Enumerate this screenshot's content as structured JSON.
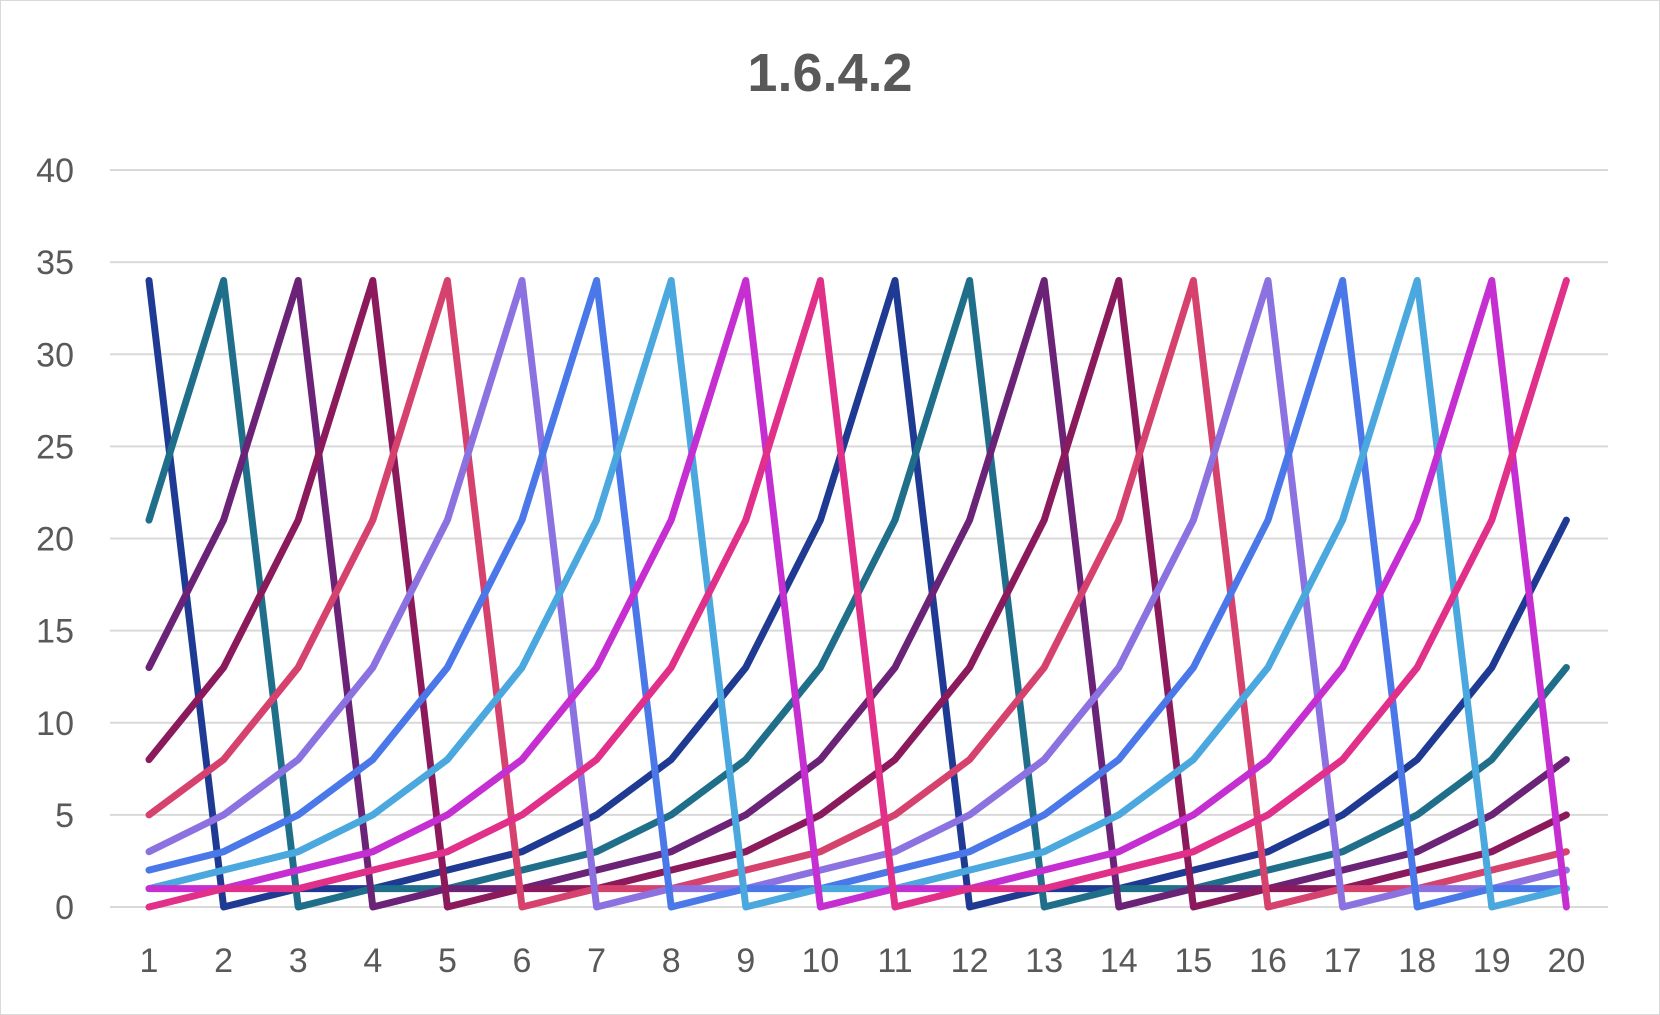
{
  "chart_data": {
    "type": "line",
    "title": "1.6.4.2",
    "xlabel": "",
    "ylabel": "",
    "x": [
      1,
      2,
      3,
      4,
      5,
      6,
      7,
      8,
      9,
      10,
      11,
      12,
      13,
      14,
      15,
      16,
      17,
      18,
      19,
      20
    ],
    "y_ticks": [
      0,
      5,
      10,
      15,
      20,
      25,
      30,
      35,
      40
    ],
    "ylim": [
      0,
      40
    ],
    "grid": true,
    "legend": "none",
    "series": [
      {
        "color": "#1f3a93",
        "values": [
          34,
          0,
          1,
          1,
          2,
          3,
          5,
          8,
          13,
          21,
          34,
          0,
          1,
          1,
          2,
          3,
          5,
          8,
          13,
          21
        ]
      },
      {
        "color": "#1f6f8b",
        "values": [
          21,
          34,
          0,
          1,
          1,
          2,
          3,
          5,
          8,
          13,
          21,
          34,
          0,
          1,
          1,
          2,
          3,
          5,
          8,
          13
        ]
      },
      {
        "color": "#6b2378",
        "values": [
          13,
          21,
          34,
          0,
          1,
          1,
          2,
          3,
          5,
          8,
          13,
          21,
          34,
          0,
          1,
          1,
          2,
          3,
          5,
          8
        ]
      },
      {
        "color": "#8b1a5c",
        "values": [
          8,
          13,
          21,
          34,
          0,
          1,
          1,
          2,
          3,
          5,
          8,
          13,
          21,
          34,
          0,
          1,
          1,
          2,
          3,
          5
        ]
      },
      {
        "color": "#d6426e",
        "values": [
          5,
          8,
          13,
          21,
          34,
          0,
          1,
          1,
          2,
          3,
          5,
          8,
          13,
          21,
          34,
          0,
          1,
          1,
          2,
          3
        ]
      },
      {
        "color": "#8b72e0",
        "values": [
          3,
          5,
          8,
          13,
          21,
          34,
          0,
          1,
          1,
          2,
          3,
          5,
          8,
          13,
          21,
          34,
          0,
          1,
          1,
          2
        ]
      },
      {
        "color": "#4b78e8",
        "values": [
          2,
          3,
          5,
          8,
          13,
          21,
          34,
          0,
          1,
          1,
          2,
          3,
          5,
          8,
          13,
          21,
          34,
          0,
          1,
          1
        ]
      },
      {
        "color": "#4aa8de",
        "values": [
          1,
          2,
          3,
          5,
          8,
          13,
          21,
          34,
          0,
          1,
          1,
          2,
          3,
          5,
          8,
          13,
          21,
          34,
          0,
          1
        ]
      },
      {
        "color": "#c52fd1",
        "values": [
          1,
          1,
          2,
          3,
          5,
          8,
          13,
          21,
          34,
          0,
          1,
          1,
          2,
          3,
          5,
          8,
          13,
          21,
          34,
          0
        ]
      },
      {
        "color": "#e0308a",
        "values": [
          0,
          1,
          1,
          2,
          3,
          5,
          8,
          13,
          21,
          34,
          0,
          1,
          1,
          2,
          3,
          5,
          8,
          13,
          21,
          34
        ]
      }
    ]
  }
}
